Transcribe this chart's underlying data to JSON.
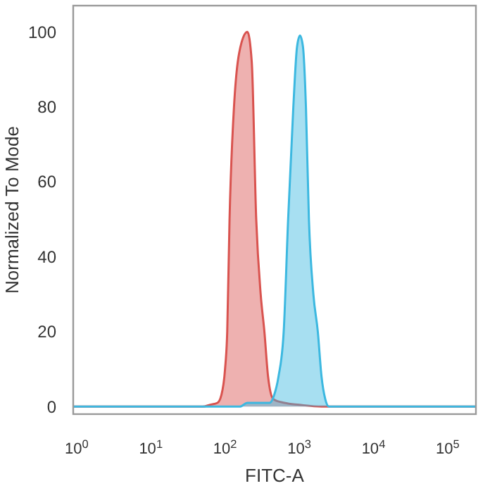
{
  "chart_data": {
    "type": "area",
    "xlabel": "FITC-A",
    "ylabel": "Normalized To Mode",
    "log": "x",
    "xlim": [
      0.9,
      240000
    ],
    "xticks": [
      {
        "value": 1,
        "label": "10$^{0}$"
      },
      {
        "value": 10,
        "label": "10$^{1}$"
      },
      {
        "value": 100,
        "label": "10$^{2}$"
      },
      {
        "value": 1000,
        "label": "10$^{3}$"
      },
      {
        "value": 10000,
        "label": "10$^{4}$"
      },
      {
        "value": 100000,
        "label": "10$^{5}$"
      }
    ],
    "ylim": [
      -2,
      107
    ],
    "yticks": [
      0,
      20,
      40,
      60,
      80,
      100
    ],
    "grid": false,
    "series": [
      {
        "color": "#d9534f",
        "x": [
          0.9,
          50,
          63,
          79,
          89,
          100,
          107,
          115,
          132,
          166,
          200,
          229,
          263,
          302,
          339,
          380,
          447,
          631,
          1000,
          2000,
          240000
        ],
        "values": [
          0,
          0,
          0.5,
          1,
          3,
          10,
          20,
          50,
          80,
          97,
          100,
          92,
          50,
          30,
          20,
          8,
          2,
          1,
          0.5,
          0,
          0
        ]
      },
      {
        "color": "#3cb8e0",
        "x": [
          0.9,
          158,
          200,
          398,
          457,
          525,
          617,
          708,
          832,
          933,
          1023,
          1122,
          1230,
          1349,
          1549,
          1778,
          1995,
          2239,
          2512,
          240000
        ],
        "values": [
          0,
          0,
          1,
          1,
          3,
          8,
          20,
          50,
          80,
          96,
          99,
          96,
          80,
          50,
          30,
          20,
          8,
          2,
          0,
          0
        ]
      }
    ]
  }
}
